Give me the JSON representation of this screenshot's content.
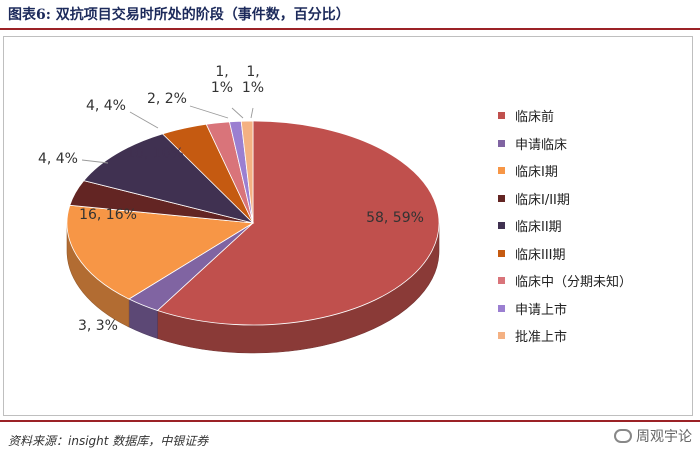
{
  "header": {
    "title": "图表6: 双抗项目交易时所处的阶段（事件数，百分比）"
  },
  "footer": {
    "source": "资料来源：insight 数据库，中银证券",
    "watermark": "周观宇论"
  },
  "chart_data": {
    "type": "pie",
    "title": "",
    "three_d": true,
    "legend_position": "right",
    "series": [
      {
        "name": "临床前",
        "value": 58,
        "percent": 59,
        "label": "58, 59%",
        "color": "#c0504d"
      },
      {
        "name": "申请临床",
        "value": 3,
        "percent": 3,
        "label": "3, 3%",
        "color": "#8064a2"
      },
      {
        "name": "临床I期",
        "value": 16,
        "percent": 16,
        "label": "16, 16%",
        "color": "#f79646"
      },
      {
        "name": "临床I/II期",
        "value": 4,
        "percent": 4,
        "label": "4, 4%",
        "color": "#632523"
      },
      {
        "name": "临床II期",
        "value": 10,
        "percent": 10,
        "label": "10, 10%",
        "color": "#403151"
      },
      {
        "name": "临床III期",
        "value": 4,
        "percent": 4,
        "label": "4, 4%",
        "color": "#c55a11"
      },
      {
        "name": "临床中（分期未知）",
        "value": 2,
        "percent": 2,
        "label": "2, 2%",
        "color": "#d9747a"
      },
      {
        "name": "申请上市",
        "value": 1,
        "percent": 1,
        "label": "1, 1%",
        "color": "#9b7fd1"
      },
      {
        "name": "批准上市",
        "value": 1,
        "percent": 1,
        "label": "1, 1%",
        "color": "#f4b183"
      }
    ]
  }
}
